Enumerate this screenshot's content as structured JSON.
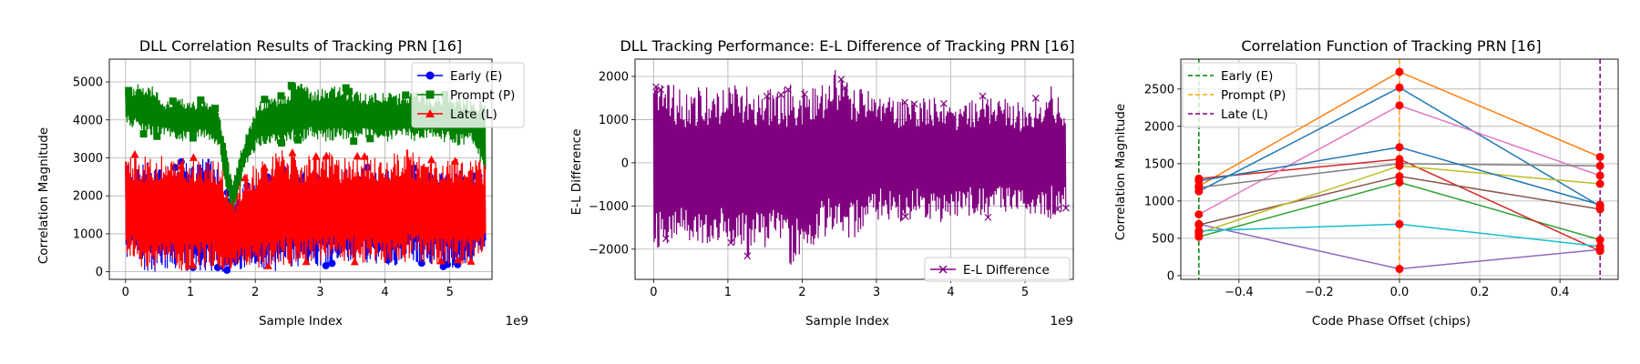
{
  "colors": {
    "early": "#0000ff",
    "prompt": "#008000",
    "late": "#ff0000",
    "el_diff": "#800080",
    "grid": "#b0b0b0",
    "prompt_line": "#ffa500",
    "lines": [
      "#1f77b4",
      "#ff7f0e",
      "#2ca02c",
      "#d62728",
      "#9467bd",
      "#8c564b",
      "#e377c2",
      "#7f7f7f",
      "#bcbd22",
      "#17becf"
    ]
  },
  "chart_data": [
    {
      "type": "line",
      "title": "DLL Correlation Results of Tracking PRN [16]",
      "xlabel": "Sample Index",
      "ylabel": "Correlation Magnitude",
      "x_offset_text": "1e9",
      "xlim": [
        -0.25,
        5.65
      ],
      "ylim": [
        -200,
        5600
      ],
      "xticks": [
        0,
        1,
        2,
        3,
        4,
        5
      ],
      "yticks": [
        0,
        1000,
        2000,
        3000,
        4000,
        5000
      ],
      "grid": true,
      "legend_position": "top-right",
      "x_range": [
        0,
        5.55
      ],
      "series": [
        {
          "name": "Early (E)",
          "marker": "circle",
          "envelope_high": [
            3000,
            3000,
            2900,
            2950,
            2900,
            2950,
            3000,
            2950,
            1700,
            2400,
            2600,
            2700,
            2800,
            2700,
            2750,
            2800,
            2700,
            2750,
            2800,
            2700,
            2700,
            2750,
            2800,
            2700,
            2650,
            2700,
            2700,
            2600
          ],
          "envelope_low": [
            300,
            50,
            0,
            0,
            0,
            0,
            0,
            0,
            0,
            0,
            0,
            0,
            50,
            100,
            150,
            150,
            200,
            200,
            200,
            200,
            150,
            200,
            200,
            150,
            100,
            100,
            150,
            400
          ]
        },
        {
          "name": "Prompt (P)",
          "marker": "square",
          "envelope_high": [
            4800,
            4950,
            4900,
            4500,
            4600,
            4500,
            4550,
            4300,
            2500,
            3600,
            4500,
            4600,
            4700,
            5200,
            4800,
            4900,
            4900,
            4800,
            4700,
            4800,
            4700,
            4700,
            4800,
            4600,
            4700,
            4600,
            4500,
            4600
          ],
          "envelope_low": [
            3900,
            3700,
            3500,
            3600,
            3400,
            3500,
            3500,
            3300,
            1200,
            2800,
            3300,
            3400,
            3300,
            3400,
            3500,
            3400,
            3500,
            3400,
            3500,
            3400,
            3400,
            3500,
            3400,
            3500,
            3400,
            3300,
            3400,
            2300
          ]
        },
        {
          "name": "Late (L)",
          "marker": "triangle",
          "envelope_high": [
            3200,
            3100,
            3000,
            3100,
            3000,
            3100,
            3000,
            3000,
            1900,
            2700,
            2900,
            3100,
            3300,
            3000,
            3100,
            3200,
            3000,
            3100,
            3100,
            3000,
            3100,
            3300,
            3100,
            3000,
            3000,
            3100,
            3000,
            2900
          ],
          "envelope_low": [
            400,
            100,
            50,
            50,
            0,
            50,
            50,
            0,
            0,
            50,
            50,
            100,
            100,
            150,
            200,
            200,
            250,
            250,
            200,
            250,
            200,
            250,
            250,
            200,
            200,
            150,
            200,
            500
          ]
        }
      ]
    },
    {
      "type": "line",
      "title": "DLL Tracking Performance: E-L Difference of Tracking PRN [16]",
      "xlabel": "Sample Index",
      "ylabel": "E-L Difference",
      "x_offset_text": "1e9",
      "xlim": [
        -0.25,
        5.65
      ],
      "ylim": [
        -2700,
        2400
      ],
      "xticks": [
        0,
        1,
        2,
        3,
        4,
        5
      ],
      "yticks": [
        -2000,
        -1000,
        0,
        1000,
        2000
      ],
      "grid": true,
      "legend_position": "bottom-right",
      "x_range": [
        0,
        5.55
      ],
      "series": [
        {
          "name": "E-L Difference",
          "marker": "x",
          "envelope_high": [
            1800,
            1850,
            1700,
            1800,
            1750,
            1800,
            1900,
            1700,
            1800,
            1850,
            1800,
            1900,
            2200,
            1800,
            1700,
            1600,
            1500,
            1500,
            1600,
            1500,
            1400,
            1500,
            1600,
            1500,
            1400,
            1500,
            1800,
            1300
          ],
          "envelope_low": [
            -2000,
            -1900,
            -1800,
            -2100,
            -1800,
            -1900,
            -2200,
            -2100,
            -1900,
            -2400,
            -2000,
            -1800,
            -1700,
            -1800,
            -1400,
            -1300,
            -1400,
            -1300,
            -1300,
            -1400,
            -1300,
            -1200,
            -1300,
            -1200,
            -1300,
            -1200,
            -1300,
            -1100
          ]
        }
      ]
    },
    {
      "type": "line",
      "title": "Correlation Function of Tracking PRN [16]",
      "xlabel": "Code Phase Offset (chips)",
      "ylabel": "Correlation Magnitude",
      "xlim": [
        -0.545,
        0.545
      ],
      "ylim": [
        -50,
        2900
      ],
      "xticks": [
        -0.4,
        -0.2,
        0.0,
        0.2,
        0.4
      ],
      "xtick_labels": [
        "−0.4",
        "−0.2",
        "0.0",
        "0.2",
        "0.4"
      ],
      "yticks": [
        0,
        500,
        1000,
        1500,
        2000,
        2500
      ],
      "grid": true,
      "legend_position": "top-left",
      "x": [
        -0.5,
        0,
        0.5
      ],
      "vlines": [
        {
          "name": "Early (E)",
          "x": -0.5,
          "color": "#008000"
        },
        {
          "name": "Prompt (P)",
          "x": 0,
          "color": "#ffa500"
        },
        {
          "name": "Late (L)",
          "x": 0.5,
          "color": "#800080"
        }
      ],
      "series": [
        {
          "values": [
            1130,
            2520,
            930
          ]
        },
        {
          "values": [
            1200,
            2730,
            1590
          ]
        },
        {
          "values": [
            520,
            1250,
            480
          ]
        },
        {
          "values": [
            1300,
            1560,
            330
          ]
        },
        {
          "values": [
            690,
            90,
            350
          ]
        },
        {
          "values": [
            680,
            1330,
            890
          ]
        },
        {
          "values": [
            820,
            2280,
            1340
          ]
        },
        {
          "values": [
            1180,
            1500,
            1470
          ]
        },
        {
          "values": [
            570,
            1470,
            1230
          ]
        },
        {
          "values": [
            600,
            690,
            390
          ]
        },
        {
          "values": [
            1270,
            1720,
            950
          ]
        }
      ]
    }
  ]
}
